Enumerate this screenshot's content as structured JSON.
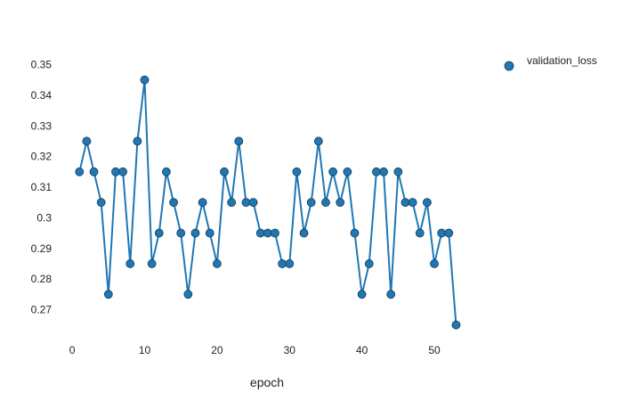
{
  "chart_data": {
    "type": "line",
    "xlabel": "epoch",
    "ylabel": "",
    "xlim": [
      -1,
      57
    ],
    "ylim": [
      0.262,
      0.358
    ],
    "xticks": [
      0,
      10,
      20,
      30,
      40,
      50
    ],
    "yticks": [
      0.27,
      0.28,
      0.29,
      0.3,
      0.31,
      0.32,
      0.33,
      0.34,
      0.35
    ],
    "ytick_labels": [
      "0.27",
      "0.28",
      "0.29",
      "0.3",
      "0.31",
      "0.32",
      "0.33",
      "0.34",
      "0.35"
    ],
    "grid": false,
    "legend_position": "top-right",
    "series": [
      {
        "name": "validation_loss",
        "color": "#1f77b4",
        "marker": "circle",
        "x": [
          1,
          2,
          3,
          4,
          5,
          6,
          7,
          8,
          9,
          10,
          11,
          12,
          13,
          14,
          15,
          16,
          17,
          18,
          19,
          20,
          21,
          22,
          23,
          24,
          25,
          26,
          27,
          28,
          29,
          30,
          31,
          32,
          33,
          34,
          35,
          36,
          37,
          38,
          39,
          40,
          41,
          42,
          43,
          44,
          45,
          46,
          47,
          48,
          49,
          50,
          51,
          52,
          53
        ],
        "y": [
          0.315,
          0.325,
          0.315,
          0.305,
          0.275,
          0.315,
          0.315,
          0.285,
          0.325,
          0.345,
          0.285,
          0.295,
          0.315,
          0.305,
          0.295,
          0.275,
          0.295,
          0.305,
          0.295,
          0.285,
          0.315,
          0.305,
          0.325,
          0.305,
          0.305,
          0.295,
          0.295,
          0.295,
          0.285,
          0.285,
          0.315,
          0.295,
          0.305,
          0.325,
          0.305,
          0.315,
          0.305,
          0.315,
          0.295,
          0.275,
          0.285,
          0.315,
          0.315,
          0.275,
          0.315,
          0.305,
          0.305,
          0.295,
          0.305,
          0.285,
          0.295,
          0.295,
          0.265
        ]
      }
    ]
  }
}
